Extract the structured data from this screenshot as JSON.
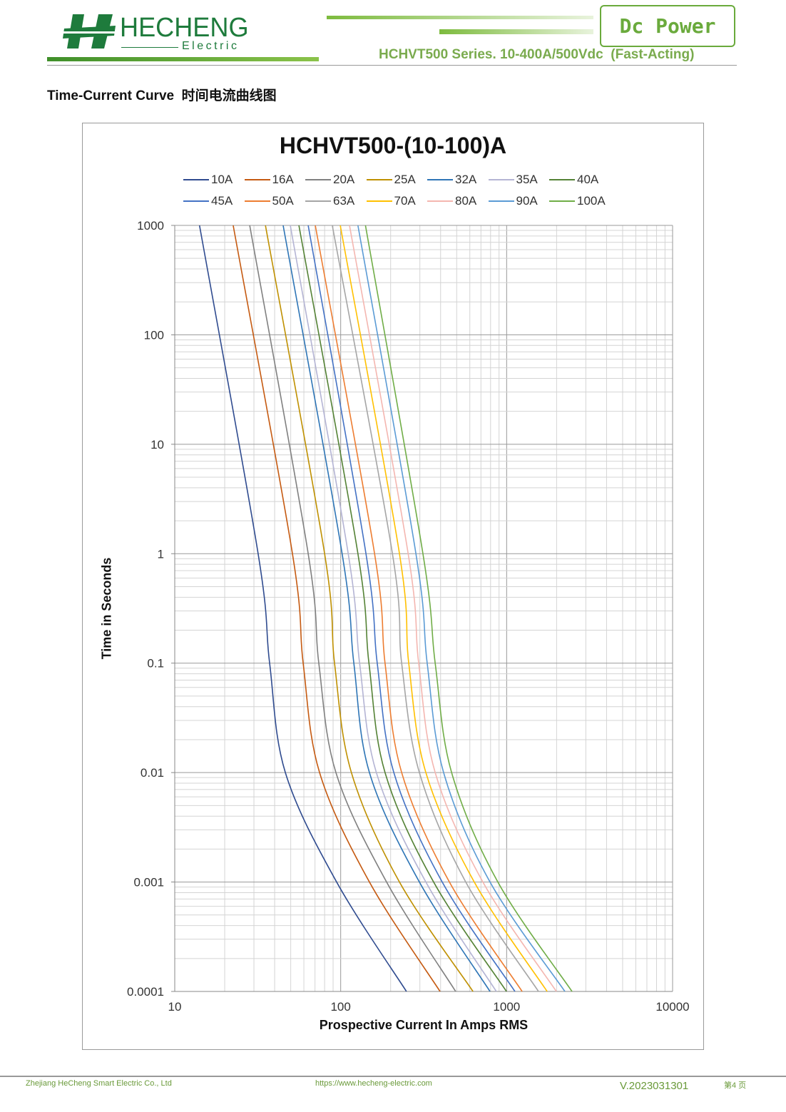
{
  "header": {
    "logo_name": "HECHENG",
    "logo_sub": "Electric",
    "badge": "Dc Power",
    "subtitle": "HCHVT500 Series. 10-400A/500Vdc  (Fast-Acting)",
    "colors": {
      "brand_green": "#1e7b3c",
      "accent_green": "#6aaa3c"
    }
  },
  "section_title": "Time-Current Curve  时间电流曲线图",
  "footer": {
    "company": "Zhejiang HeCheng Smart Electric Co., Ltd",
    "url": "https://www.hecheng-electric.com",
    "version": "V.2023031301",
    "page": "第4 页"
  },
  "chart_data": {
    "type": "line",
    "title": "HCHVT500-(10-100)A",
    "xlabel": "Prospective Current In Amps RMS",
    "ylabel": "Time in Seconds",
    "xscale": "log",
    "yscale": "log",
    "xlim": [
      10,
      10000
    ],
    "ylim": [
      0.0001,
      1000
    ],
    "xticks": [
      "10",
      "100",
      "1000",
      "10000"
    ],
    "yticks": [
      "1000",
      "100",
      "10",
      "1",
      "0.1",
      "0.01",
      "0.001",
      "0.0001"
    ],
    "grid": true,
    "legend_position": "top",
    "point_times": [
      1000,
      1,
      0.1,
      0.01,
      0.001,
      0.0001
    ],
    "series": [
      {
        "name": "10A",
        "color": "#2f4b8f",
        "currents": [
          14.1,
          31.8,
          37.3,
          46.4,
          94.5,
          249
        ]
      },
      {
        "name": "16A",
        "color": "#c55a11",
        "currents": [
          22.5,
          51.2,
          59.4,
          74.6,
          149,
          397
        ]
      },
      {
        "name": "20A",
        "color": "#808080",
        "currents": [
          28.3,
          63.7,
          73.8,
          93.6,
          189,
          493
        ]
      },
      {
        "name": "25A",
        "color": "#bf9000",
        "currents": [
          35.2,
          80,
          91.8,
          116,
          226,
          627
        ]
      },
      {
        "name": "32A",
        "color": "#2e75b6",
        "currents": [
          45,
          102,
          120,
          149,
          298,
          794
        ]
      },
      {
        "name": "35A",
        "color": "#b4b4d4",
        "currents": [
          49.7,
          111,
          130,
          164,
          326,
          867
        ]
      },
      {
        "name": "40A",
        "color": "#548235",
        "currents": [
          56,
          127,
          148,
          185,
          363,
          998
        ]
      },
      {
        "name": "45A",
        "color": "#4472c4",
        "currents": [
          63.7,
          142,
          166,
          209,
          409,
          1122
        ]
      },
      {
        "name": "50A",
        "color": "#ed7d31",
        "currents": [
          70.3,
          160,
          185,
          233,
          452,
          1240
        ]
      },
      {
        "name": "63A",
        "color": "#a5a5a5",
        "currents": [
          89,
          205,
          233,
          298,
          567,
          1556
        ]
      },
      {
        "name": "70A",
        "color": "#ffc000",
        "currents": [
          99.4,
          226,
          257,
          326,
          638,
          1754
        ]
      },
      {
        "name": "80A",
        "color": "#f4b6b0",
        "currents": [
          113,
          255,
          295,
          371,
          719,
          1995
        ]
      },
      {
        "name": "90A",
        "color": "#5b9bd5",
        "currents": [
          127,
          284,
          332,
          417,
          794,
          2244
        ]
      },
      {
        "name": "100A",
        "color": "#70ad47",
        "currents": [
          141,
          313,
          371,
          466,
          885,
          2477
        ]
      }
    ]
  }
}
